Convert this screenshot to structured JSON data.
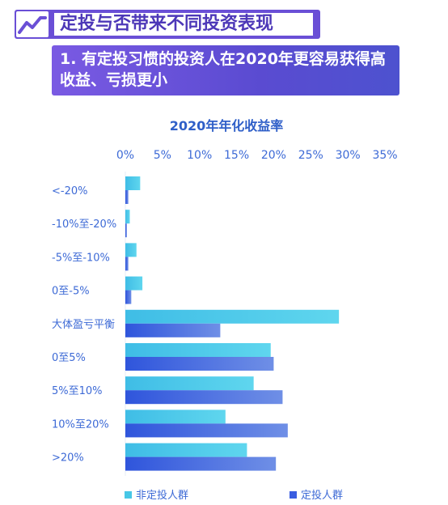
{
  "header": {
    "title": "定投与否带来不同投资表现",
    "logo_icon": "trend-line-icon"
  },
  "subtitle": {
    "text": "1. 有定投习惯的投资人在2020年更容易获得高收益、亏损更小"
  },
  "colors": {
    "header_bg": "#6a4fd6",
    "non_dca": "#47c7e6",
    "dca": "#3a5de0",
    "text": "#3d6ad6"
  },
  "chart_data": {
    "type": "bar",
    "orientation": "horizontal",
    "title": "2020年年化收益率",
    "categories": [
      "<-20%",
      "-10%至-20%",
      "-5%至-10%",
      "0至-5%",
      "大体盈亏平衡",
      "0至5%",
      "5%至10%",
      "10%至20%",
      ">20%"
    ],
    "series": [
      {
        "name": "非定投人群",
        "values": [
          2.0,
          0.6,
          1.5,
          2.3,
          28.8,
          19.6,
          17.3,
          13.5,
          16.4
        ]
      },
      {
        "name": "定投人群",
        "values": [
          0.4,
          0.2,
          0.4,
          0.8,
          12.8,
          20.0,
          21.2,
          21.9,
          20.3
        ]
      }
    ],
    "xlim": [
      0,
      35
    ],
    "xticks": [
      "0%",
      "5%",
      "10%",
      "15%",
      "20%",
      "25%",
      "30%",
      "35%"
    ],
    "legend_position": "bottom"
  }
}
